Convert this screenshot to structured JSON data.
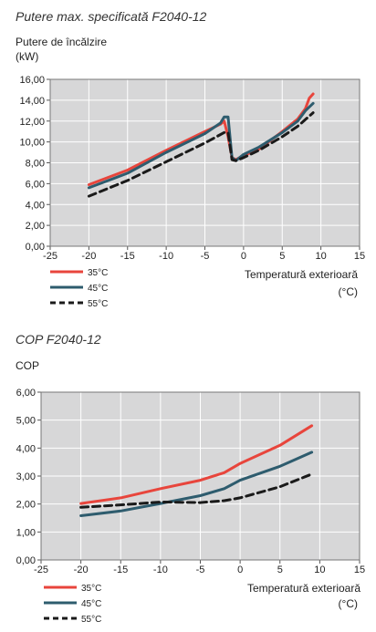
{
  "chart_data": [
    {
      "type": "line",
      "title": "Putere max. specificată F2040-12",
      "ylabel": "Putere de încălzire",
      "yunit": "(kW)",
      "xlabel": "Temperatură exterioară",
      "xunit": "(°C)",
      "xlim": [
        -25,
        15
      ],
      "ylim": [
        0,
        16
      ],
      "xticks": [
        "-25",
        "-20",
        "-15",
        "-10",
        "-5",
        "0",
        "5",
        "10",
        "15"
      ],
      "yticks": [
        "0,00",
        "2,00",
        "4,00",
        "6,00",
        "8,00",
        "10,00",
        "12,00",
        "14,00",
        "16,00"
      ],
      "grid": true,
      "legend_position": "bottom-left",
      "series": [
        {
          "name": "35°C",
          "color": "#e8453c",
          "dash": "solid",
          "x": [
            -20,
            -15,
            -10,
            -5,
            -3,
            -2.5,
            -2,
            -1.5,
            -1,
            0,
            2,
            5,
            7,
            8,
            8.5,
            9
          ],
          "y": [
            5.9,
            7.3,
            9.2,
            11.0,
            11.7,
            12.0,
            10.5,
            8.5,
            8.3,
            8.7,
            9.3,
            11.0,
            12.2,
            13.2,
            14.2,
            14.6
          ]
        },
        {
          "name": "45°C",
          "color": "#2e5c6e",
          "dash": "solid",
          "x": [
            -20,
            -15,
            -10,
            -5,
            -3,
            -2.5,
            -2,
            -1.5,
            -1,
            0,
            2,
            5,
            7,
            8,
            9
          ],
          "y": [
            5.6,
            7.0,
            9.0,
            10.8,
            11.8,
            12.4,
            12.4,
            8.5,
            8.2,
            8.8,
            9.5,
            10.9,
            12.0,
            13.0,
            13.7
          ]
        },
        {
          "name": "55°C",
          "color": "#1a1a1a",
          "dash": "dashed",
          "x": [
            -20,
            -15,
            -10,
            -5,
            -2.5,
            -2,
            -1.5,
            -1,
            0,
            2,
            5,
            7,
            9
          ],
          "y": [
            4.8,
            6.3,
            8.1,
            9.9,
            10.9,
            10.9,
            8.3,
            8.2,
            8.5,
            9.2,
            10.5,
            11.5,
            12.8
          ]
        }
      ]
    },
    {
      "type": "line",
      "title": "COP F2040-12",
      "ylabel": "COP",
      "xlabel": "Temperatură exterioară",
      "xunit": "(°C)",
      "xlim": [
        -25,
        15
      ],
      "ylim": [
        0,
        6
      ],
      "xticks": [
        "-25",
        "-20",
        "-15",
        "-10",
        "-5",
        "0",
        "5",
        "10",
        "15"
      ],
      "yticks": [
        "0,00",
        "1,00",
        "2,00",
        "3,00",
        "4,00",
        "5,00",
        "6,00"
      ],
      "grid": true,
      "legend_position": "bottom-left",
      "series": [
        {
          "name": "35°C",
          "color": "#e8453c",
          "dash": "solid",
          "x": [
            -20,
            -15,
            -10,
            -5,
            -2,
            0,
            5,
            9
          ],
          "y": [
            2.02,
            2.22,
            2.55,
            2.85,
            3.12,
            3.45,
            4.1,
            4.8
          ]
        },
        {
          "name": "45°C",
          "color": "#2e5c6e",
          "dash": "solid",
          "x": [
            -20,
            -15,
            -10,
            -5,
            -2,
            0,
            5,
            9
          ],
          "y": [
            1.58,
            1.75,
            2.02,
            2.3,
            2.55,
            2.85,
            3.35,
            3.85
          ]
        },
        {
          "name": "55°C",
          "color": "#1a1a1a",
          "dash": "dashed",
          "x": [
            -20,
            -15,
            -10,
            -5,
            -2,
            0,
            5,
            9
          ],
          "y": [
            1.88,
            1.97,
            2.07,
            2.05,
            2.12,
            2.22,
            2.62,
            3.07
          ]
        }
      ]
    }
  ]
}
